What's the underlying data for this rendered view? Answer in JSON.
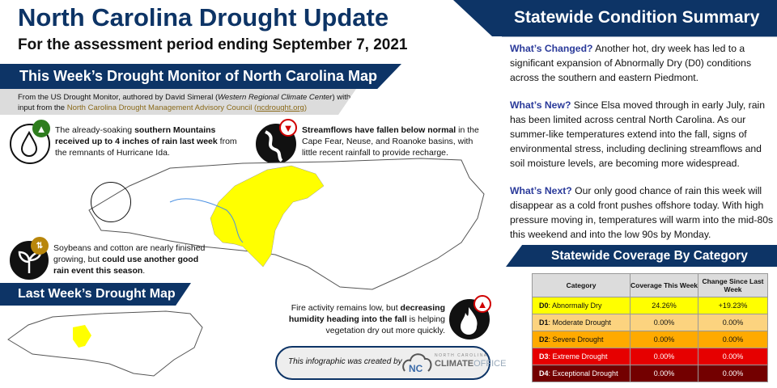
{
  "header": {
    "title": "North Carolina Drought Update",
    "subtitle": "For the assessment period ending September 7, 2021"
  },
  "map_section": {
    "title": "This Week’s Drought Monitor of North Carolina Map",
    "source_1": "From the US Drought Monitor, authored by David Simeral (",
    "source_org": "Western Regional Climate Center",
    "source_2": ") with input from the ",
    "council": "North Carolina Drought Management Advisory Council",
    "paren_open": " (",
    "link": "ncdrought.org",
    "paren_close": ")"
  },
  "notes": {
    "rain": {
      "pre": "The already-soaking ",
      "bold": "southern Mountains received up to 4 inches of rain last week",
      "post": " from the remnants of Hurricane Ida.",
      "icon": "water-drop-icon",
      "trend": "up"
    },
    "streams": {
      "bold": "Streamflows have fallen below normal",
      "post": " in the Cape Fear, Neuse, and Roanoke basins, with little recent rainfall to provide recharge.",
      "icon": "river-icon",
      "trend": "down"
    },
    "crops": {
      "pre": "Soybeans and cotton are nearly finished growing, but ",
      "bold": "could use another good rain event this season",
      "post": ".",
      "icon": "sprout-icon",
      "trend": "up-down"
    },
    "fire": {
      "pre": "Fire activity remains low, but ",
      "bold": "decreasing humidity heading into the fall",
      "post": " is helping vegetation dry out more quickly.",
      "icon": "fire-icon",
      "trend": "up"
    }
  },
  "last_week": {
    "title": "Last Week’s Drought Map"
  },
  "credit": {
    "text": "This infographic was created by",
    "logo_top": "NORTH CAROLINA",
    "logo_a": "CLIMATE",
    "logo_b": "OFFICE"
  },
  "summary": {
    "title": "Statewide Condition Summary",
    "changed_label": "What’s Changed?",
    "changed": " Another hot, dry week has led to a significant expansion of Abnormally Dry (D0) conditions across the southern and eastern Piedmont.",
    "new_label": "What’s New?",
    "new": " Since Elsa moved through in early July, rain has been limited across central North Carolina. As our summer-like temperatures extend into the fall, signs of environmental stress, including declining streamflows and soil moisture levels, are becoming more widespread.",
    "next_label": "What’s Next?",
    "next": " Our only good chance of rain this week will disappear as a cold front pushes offshore today. With high pressure moving in, temperatures will warm into the mid-80s this weekend and into the low 90s by Monday."
  },
  "coverage": {
    "title": "Statewide Coverage By Category",
    "headers": [
      "Category",
      "Coverage This Week",
      "Change Since Last Week"
    ],
    "rows": [
      {
        "code": "D0",
        "name": ": Abnormally Dry",
        "coverage": "24.26%",
        "change": "+19.23%",
        "color": "#ffff00",
        "text": "#111"
      },
      {
        "code": "D1",
        "name": ": Moderate Drought",
        "coverage": "0.00%",
        "change": "0.00%",
        "color": "#fcd37f",
        "text": "#111"
      },
      {
        "code": "D2",
        "name": ": Severe Drought",
        "coverage": "0.00%",
        "change": "0.00%",
        "color": "#ffaa00",
        "text": "#111"
      },
      {
        "code": "D3",
        "name": ": Extreme Drought",
        "coverage": "0.00%",
        "change": "0.00%",
        "color": "#e60000",
        "text": "#fff"
      },
      {
        "code": "D4",
        "name": ": Exceptional Drought",
        "coverage": "0.00%",
        "change": "0.00%",
        "color": "#730000",
        "text": "#fff"
      }
    ]
  },
  "colors": {
    "navy": "#0d3466",
    "highlight": "#2a3a9a",
    "up": "#2e7d1e",
    "down": "#d00000",
    "d0": "#ffff00"
  }
}
